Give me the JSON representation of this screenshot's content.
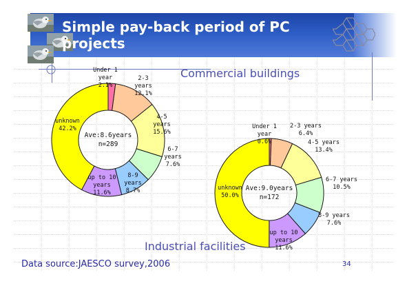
{
  "slide": {
    "title": "Simple pay-back period of PC projects",
    "footer": "Data source:JAESCO survey,2006",
    "page_number": "34",
    "colors": {
      "band": "#2c5cc4",
      "accent": "#4b4fb5"
    },
    "icons": [
      "bird-photo-icon",
      "bird-photo-icon",
      "bird-photo-icon",
      "hexagon-logo-icon"
    ]
  },
  "chart_data": [
    {
      "type": "pie",
      "variant": "donut",
      "title": "Commercial buildings",
      "center_text": [
        "Ave:8.6years",
        "n=289"
      ],
      "slices": [
        {
          "label": [
            "Under 1",
            "year"
          ],
          "value_text": "2.1%",
          "value": 2.1,
          "color": "#ff6fa8"
        },
        {
          "label": [
            "2-3",
            "years"
          ],
          "value_text": "12.1%",
          "value": 12.1,
          "color": "#ffc99b"
        },
        {
          "label": [
            "4-5",
            "years"
          ],
          "value_text": "15.6%",
          "value": 15.6,
          "color": "#ffff99"
        },
        {
          "label": [
            "6-7",
            "years"
          ],
          "value_text": "7.6%",
          "value": 7.6,
          "color": "#ccffcc"
        },
        {
          "label": [
            "8-9",
            "years"
          ],
          "value_text": "8.7%",
          "value": 8.7,
          "color": "#99ccff"
        },
        {
          "label": [
            "up to 10",
            "years"
          ],
          "value_text": "11.6%",
          "value": 11.6,
          "color": "#cc99ff"
        },
        {
          "label": [
            "unknown"
          ],
          "value_text": "42.2%",
          "value": 42.2,
          "color": "#ffff00"
        }
      ]
    },
    {
      "type": "pie",
      "variant": "donut",
      "title": "Industrial facilities",
      "center_text": [
        "Ave:9.0years",
        "n=172"
      ],
      "slices": [
        {
          "label": [
            "Under 1",
            "year"
          ],
          "value_text": "0.6%",
          "value": 0.6,
          "color": "#ff6fa8"
        },
        {
          "label": [
            "2-3 years"
          ],
          "value_text": "6.4%",
          "value": 6.4,
          "color": "#ffc99b"
        },
        {
          "label": [
            "4-5 years"
          ],
          "value_text": "13.4%",
          "value": 13.4,
          "color": "#ffff99"
        },
        {
          "label": [
            "6-7 years"
          ],
          "value_text": "10.5%",
          "value": 10.5,
          "color": "#ccffcc"
        },
        {
          "label": [
            "8-9 years"
          ],
          "value_text": "7.6%",
          "value": 7.6,
          "color": "#99ccff"
        },
        {
          "label": [
            "up to 10",
            "years"
          ],
          "value_text": "11.6%",
          "value": 11.6,
          "color": "#cc99ff"
        },
        {
          "label": [
            "unknown"
          ],
          "value_text": "50.0%",
          "value": 50.0,
          "color": "#ffff00"
        }
      ]
    }
  ]
}
